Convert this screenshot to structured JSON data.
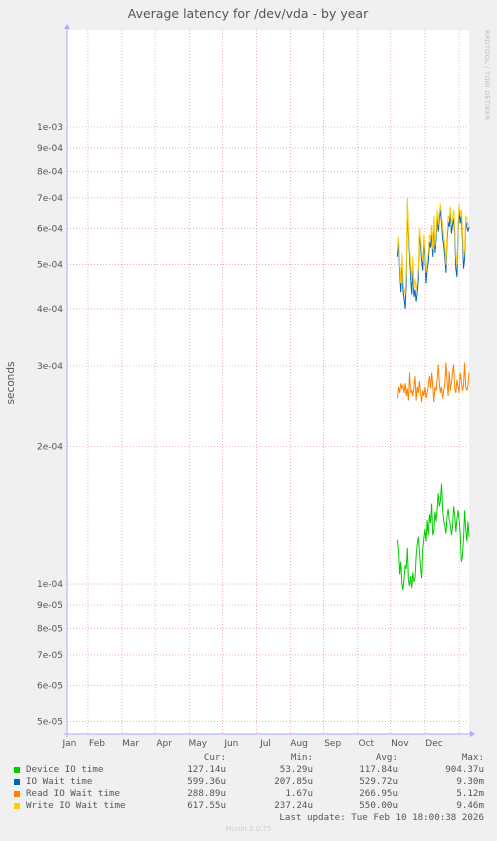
{
  "chart_data": {
    "type": "line",
    "title": "Average latency for /dev/vda - by year",
    "ylabel": "seconds",
    "side_label": "RRDTOOL / TOBI OETIKER",
    "yscale": "log",
    "ylim": [
      4.7e-05,
      0.00163
    ],
    "yticks": [
      {
        "value": 0.001,
        "label": "1e-03"
      },
      {
        "value": 0.0009,
        "label": "9e-04"
      },
      {
        "value": 0.0008,
        "label": "8e-04"
      },
      {
        "value": 0.0007,
        "label": "7e-04"
      },
      {
        "value": 0.0006,
        "label": "6e-04"
      },
      {
        "value": 0.0005,
        "label": "5e-04"
      },
      {
        "value": 0.0004,
        "label": "4e-04"
      },
      {
        "value": 0.0003,
        "label": "3e-04"
      },
      {
        "value": 0.0002,
        "label": "2e-04"
      },
      {
        "value": 0.0001,
        "label": "1e-04"
      },
      {
        "value": 9e-05,
        "label": "9e-05"
      },
      {
        "value": 8e-05,
        "label": "8e-05"
      },
      {
        "value": 7e-05,
        "label": "7e-05"
      },
      {
        "value": 6e-05,
        "label": "6e-05"
      },
      {
        "value": 5e-05,
        "label": "5e-05"
      }
    ],
    "xlim": [
      "2025-02-10",
      "2026-02-10"
    ],
    "xticks": [
      {
        "value": "2025-03-01",
        "label": "Jan"
      },
      {
        "value": "2025-04-01",
        "label": "Feb"
      },
      {
        "value": "2025-05-01",
        "label": "Mar"
      },
      {
        "value": "2025-06-01",
        "label": "Apr"
      },
      {
        "value": "2025-07-01",
        "label": "May"
      },
      {
        "value": "2025-08-01",
        "label": "Jun"
      },
      {
        "value": "2025-09-01",
        "label": "Jul"
      },
      {
        "value": "2025-10-01",
        "label": "Aug"
      },
      {
        "value": "2025-11-01",
        "label": "Sep"
      },
      {
        "value": "2025-12-01",
        "label": "Oct"
      },
      {
        "value": "2026-01-01",
        "label": "Nov"
      },
      {
        "value": "2026-02-01",
        "label": "Dec"
      }
    ],
    "extra_xticks": [
      {
        "value": "2025-11-23",
        "label": "Dec"
      },
      {
        "value": "2026-01-01",
        "label": "Jan"
      }
    ],
    "grid": true,
    "colors": {
      "background": "#ffffff",
      "canvas": "#f0f0f0",
      "grid": "#e08080",
      "axis": "#aaaaff"
    },
    "series": [
      {
        "name": "Device IO time",
        "color": "#00cc00",
        "x": [
          "2025-12-07",
          "2025-12-08",
          "2025-12-09",
          "2025-12-10",
          "2025-12-11",
          "2025-12-12",
          "2025-12-13",
          "2025-12-14",
          "2025-12-15",
          "2025-12-16",
          "2025-12-17",
          "2025-12-18",
          "2025-12-19",
          "2025-12-20",
          "2025-12-21",
          "2025-12-22",
          "2025-12-23",
          "2025-12-24",
          "2025-12-25",
          "2025-12-26",
          "2025-12-27",
          "2025-12-28",
          "2025-12-29",
          "2025-12-30",
          "2025-12-31",
          "2026-01-01",
          "2026-01-02",
          "2026-01-03",
          "2026-01-04",
          "2026-01-05",
          "2026-01-06",
          "2026-01-07",
          "2026-01-08",
          "2026-01-09",
          "2026-01-10",
          "2026-01-11",
          "2026-01-12",
          "2026-01-13",
          "2026-01-14",
          "2026-01-15",
          "2026-01-16",
          "2026-01-17",
          "2026-01-18",
          "2026-01-19",
          "2026-01-20",
          "2026-01-21",
          "2026-01-22",
          "2026-01-23",
          "2026-01-24",
          "2026-01-25",
          "2026-01-26",
          "2026-01-27",
          "2026-01-28",
          "2026-01-29",
          "2026-01-30",
          "2026-01-31",
          "2026-02-01",
          "2026-02-02",
          "2026-02-03",
          "2026-02-04",
          "2026-02-05",
          "2026-02-06",
          "2026-02-07",
          "2026-02-08",
          "2026-02-09",
          "2026-02-10"
        ],
        "values": [
          0.000125,
          0.000118,
          0.000105,
          0.000112,
          0.0001,
          9.7e-05,
          0.000103,
          0.00011,
          0.000108,
          0.00012,
          0.000102,
          9.9e-05,
          0.000104,
          9.8e-05,
          0.000106,
          0.000101,
          0.000103,
          0.000115,
          0.000122,
          0.000127,
          0.000118,
          0.000109,
          0.000103,
          0.000119,
          0.000126,
          0.000132,
          0.000124,
          0.000138,
          0.000128,
          0.000142,
          0.000136,
          0.00015,
          0.000128,
          0.000131,
          0.000144,
          0.000137,
          0.000146,
          0.000158,
          0.000148,
          0.000152,
          0.000166,
          0.000145,
          0.000137,
          0.000134,
          0.000129,
          0.000141,
          0.000146,
          0.000138,
          0.000135,
          0.000128,
          0.000133,
          0.000148,
          0.000142,
          0.00013,
          0.000139,
          0.000145,
          0.000138,
          0.000129,
          0.000112,
          0.000115,
          0.000126,
          0.000145,
          0.000132,
          0.000124,
          0.000137,
          0.000127
        ]
      },
      {
        "name": "IO Wait time",
        "color": "#0066b3",
        "x": [
          "2025-12-07",
          "2025-12-08",
          "2025-12-09",
          "2025-12-10",
          "2025-12-11",
          "2025-12-12",
          "2025-12-13",
          "2025-12-14",
          "2025-12-15",
          "2025-12-16",
          "2025-12-17",
          "2025-12-18",
          "2025-12-19",
          "2025-12-20",
          "2025-12-21",
          "2025-12-22",
          "2025-12-23",
          "2025-12-24",
          "2025-12-25",
          "2025-12-26",
          "2025-12-27",
          "2025-12-28",
          "2025-12-29",
          "2025-12-30",
          "2025-12-31",
          "2026-01-01",
          "2026-01-02",
          "2026-01-03",
          "2026-01-04",
          "2026-01-05",
          "2026-01-06",
          "2026-01-07",
          "2026-01-08",
          "2026-01-09",
          "2026-01-10",
          "2026-01-11",
          "2026-01-12",
          "2026-01-13",
          "2026-01-14",
          "2026-01-15",
          "2026-01-16",
          "2026-01-17",
          "2026-01-18",
          "2026-01-19",
          "2026-01-20",
          "2026-01-21",
          "2026-01-22",
          "2026-01-23",
          "2026-01-24",
          "2026-01-25",
          "2026-01-26",
          "2026-01-27",
          "2026-01-28",
          "2026-01-29",
          "2026-01-30",
          "2026-01-31",
          "2026-02-01",
          "2026-02-02",
          "2026-02-03",
          "2026-02-04",
          "2026-02-05",
          "2026-02-06",
          "2026-02-07",
          "2026-02-08",
          "2026-02-09",
          "2026-02-10"
        ],
        "values": [
          0.00052,
          0.000555,
          0.00048,
          0.000435,
          0.00051,
          0.00044,
          0.00042,
          0.0004,
          0.00046,
          0.00068,
          0.000585,
          0.00052,
          0.00047,
          0.00043,
          0.000495,
          0.000425,
          0.00044,
          0.000415,
          0.000435,
          0.000468,
          0.00058,
          0.00055,
          0.00051,
          0.000485,
          0.00056,
          0.00052,
          0.000455,
          0.00049,
          0.000505,
          0.00056,
          0.000545,
          0.000585,
          0.00052,
          0.000615,
          0.00053,
          0.00057,
          0.00064,
          0.00059,
          0.00063,
          0.00066,
          0.000615,
          0.00057,
          0.00055,
          0.00052,
          0.00048,
          0.00056,
          0.00062,
          0.000605,
          0.00065,
          0.000585,
          0.00061,
          0.00063,
          0.00058,
          0.00049,
          0.00047,
          0.00059,
          0.00066,
          0.000615,
          0.00064,
          0.00057,
          0.00049,
          0.000515,
          0.00062,
          0.000605,
          0.00059,
          0.000605
        ]
      },
      {
        "name": "Read IO Wait time",
        "color": "#ff8000",
        "x": [
          "2025-12-07",
          "2025-12-08",
          "2025-12-09",
          "2025-12-10",
          "2025-12-11",
          "2025-12-12",
          "2025-12-13",
          "2025-12-14",
          "2025-12-15",
          "2025-12-16",
          "2025-12-17",
          "2025-12-18",
          "2025-12-19",
          "2025-12-20",
          "2025-12-21",
          "2025-12-22",
          "2025-12-23",
          "2025-12-24",
          "2025-12-25",
          "2025-12-26",
          "2025-12-27",
          "2025-12-28",
          "2025-12-29",
          "2025-12-30",
          "2025-12-31",
          "2026-01-01",
          "2026-01-02",
          "2026-01-03",
          "2026-01-04",
          "2026-01-05",
          "2026-01-06",
          "2026-01-07",
          "2026-01-08",
          "2026-01-09",
          "2026-01-10",
          "2026-01-11",
          "2026-01-12",
          "2026-01-13",
          "2026-01-14",
          "2026-01-15",
          "2026-01-16",
          "2026-01-17",
          "2026-01-18",
          "2026-01-19",
          "2026-01-20",
          "2026-01-21",
          "2026-01-22",
          "2026-01-23",
          "2026-01-24",
          "2026-01-25",
          "2026-01-26",
          "2026-01-27",
          "2026-01-28",
          "2026-01-29",
          "2026-01-30",
          "2026-01-31",
          "2026-02-01",
          "2026-02-02",
          "2026-02-03",
          "2026-02-04",
          "2026-02-05",
          "2026-02-06",
          "2026-02-07",
          "2026-02-08",
          "2026-02-09",
          "2026-02-10"
        ],
        "values": [
          0.000255,
          0.00027,
          0.000262,
          0.000275,
          0.000268,
          0.000272,
          0.000262,
          0.000275,
          0.000258,
          0.000268,
          0.000252,
          0.00029,
          0.000262,
          0.000265,
          0.000258,
          0.00027,
          0.000285,
          0.000252,
          0.00027,
          0.000262,
          0.000278,
          0.000262,
          0.00025,
          0.000265,
          0.000258,
          0.00027,
          0.000255,
          0.000262,
          0.000272,
          0.000285,
          0.000268,
          0.00029,
          0.000272,
          0.00025,
          0.00027,
          0.000265,
          0.00028,
          0.000302,
          0.000275,
          0.000262,
          0.00027,
          0.000255,
          0.000265,
          0.000275,
          0.000305,
          0.000278,
          0.000258,
          0.000292,
          0.000265,
          0.000275,
          0.00029,
          0.000302,
          0.000268,
          0.000262,
          0.00028,
          0.00027,
          0.000262,
          0.00029,
          0.000278,
          0.000265,
          0.000272,
          0.000305,
          0.00027,
          0.000265,
          0.000272,
          0.00029
        ]
      },
      {
        "name": "Write IO Wait time",
        "color": "#ffcc00",
        "x": [
          "2025-12-07",
          "2025-12-08",
          "2025-12-09",
          "2025-12-10",
          "2025-12-11",
          "2025-12-12",
          "2025-12-13",
          "2025-12-14",
          "2025-12-15",
          "2025-12-16",
          "2025-12-17",
          "2025-12-18",
          "2025-12-19",
          "2025-12-20",
          "2025-12-21",
          "2025-12-22",
          "2025-12-23",
          "2025-12-24",
          "2025-12-25",
          "2025-12-26",
          "2025-12-27",
          "2025-12-28",
          "2025-12-29",
          "2025-12-30",
          "2025-12-31",
          "2026-01-01",
          "2026-01-02",
          "2026-01-03",
          "2026-01-04",
          "2026-01-05",
          "2026-01-06",
          "2026-01-07",
          "2026-01-08",
          "2026-01-09",
          "2026-01-10",
          "2026-01-11",
          "2026-01-12",
          "2026-01-13",
          "2026-01-14",
          "2026-01-15",
          "2026-01-16",
          "2026-01-17",
          "2026-01-18",
          "2026-01-19",
          "2026-01-20",
          "2026-01-21",
          "2026-01-22",
          "2026-01-23",
          "2026-01-24",
          "2026-01-25",
          "2026-01-26",
          "2026-01-27",
          "2026-01-28",
          "2026-01-29",
          "2026-01-30",
          "2026-01-31",
          "2026-02-01",
          "2026-02-02",
          "2026-02-03",
          "2026-02-04",
          "2026-02-05",
          "2026-02-06",
          "2026-02-07",
          "2026-02-08",
          "2026-02-09",
          "2026-02-10"
        ],
        "values": [
          0.00055,
          0.000575,
          0.0005,
          0.000455,
          0.00053,
          0.00046,
          0.00044,
          0.00043,
          0.00049,
          0.0007,
          0.0006,
          0.00054,
          0.0005,
          0.00046,
          0.00052,
          0.000445,
          0.000465,
          0.00044,
          0.000455,
          0.00049,
          0.0006,
          0.00057,
          0.00053,
          0.00051,
          0.00058,
          0.00054,
          0.00048,
          0.00051,
          0.00053,
          0.00058,
          0.00057,
          0.00061,
          0.00054,
          0.00064,
          0.00055,
          0.00059,
          0.00066,
          0.00061,
          0.00065,
          0.00068,
          0.00064,
          0.0006,
          0.00057,
          0.00055,
          0.0005,
          0.00058,
          0.00064,
          0.00063,
          0.00067,
          0.00061,
          0.00063,
          0.00066,
          0.0006,
          0.00052,
          0.0005,
          0.00061,
          0.00068,
          0.00064,
          0.00066,
          0.0006,
          0.00052,
          0.00054,
          0.00064,
          0.00063,
          0.00061,
          0.000615
        ]
      }
    ]
  },
  "legend": {
    "headers": [
      "Cur:",
      "Min:",
      "Avg:",
      "Max:"
    ],
    "rows": [
      {
        "label": "Device IO time",
        "color": "#00cc00",
        "cur": "127.14u",
        "min": "53.29u",
        "avg": "117.84u",
        "max": "904.37u"
      },
      {
        "label": "IO Wait time",
        "color": "#0066b3",
        "cur": "599.36u",
        "min": "207.85u",
        "avg": "529.72u",
        "max": "9.30m"
      },
      {
        "label": "Read IO Wait time",
        "color": "#ff8000",
        "cur": "288.89u",
        "min": "1.67u",
        "avg": "266.95u",
        "max": "5.12m"
      },
      {
        "label": "Write IO Wait time",
        "color": "#ffcc00",
        "cur": "617.55u",
        "min": "237.24u",
        "avg": "550.00u",
        "max": "9.46m"
      }
    ]
  },
  "last_update": "Last update: Tue Feb 10 18:00:38 2026",
  "footer": "Munin 2.0.75"
}
